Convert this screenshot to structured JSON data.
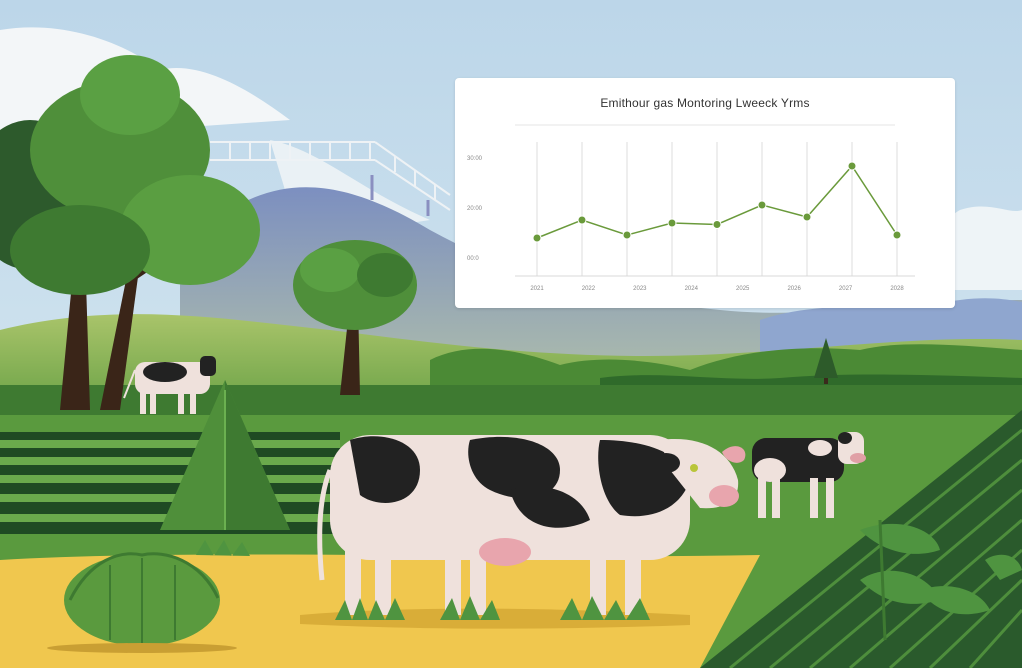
{
  "scene": {
    "description_icons": [
      "cow-icon",
      "tree-icon",
      "field-icon",
      "mountain-icon",
      "bridge-icon"
    ],
    "colors": {
      "sky": "#c6dcec",
      "grass": "#4f8f3a",
      "dark_green": "#2f5b2b",
      "field_yellow": "#f0c74e",
      "cow_black": "#222222",
      "cow_white": "#efe1dc"
    }
  },
  "chart_card": {
    "title": "Emithour gas Montoring Lweeck Yrms",
    "chart_data": {
      "type": "line",
      "title": "Emithour gas Montoring Lweeck Yrms",
      "y_tick_labels": [
        "30:00",
        "20:00",
        "00:0"
      ],
      "x_tick_labels": [
        "2021",
        "2022",
        "2023",
        "2024",
        "2025",
        "2026",
        "2027",
        "2028"
      ],
      "values": [
        1.0,
        1.6,
        1.1,
        1.5,
        1.45,
        2.1,
        1.7,
        3.4,
        1.1
      ],
      "ylim": [
        0,
        4
      ],
      "grid": "vertical",
      "line_color": "#6a9a3b"
    }
  }
}
